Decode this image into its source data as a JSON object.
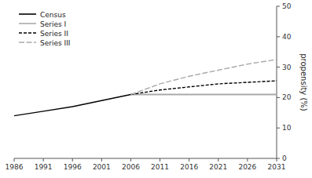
{
  "chart_data": {
    "type": "line",
    "ylabel": "propensity (%)",
    "series": [
      {
        "name": "Census",
        "color": "#000000",
        "line_style": "solid",
        "x": [
          1986,
          1991,
          1996,
          2001,
          2006
        ],
        "values": [
          14.0,
          15.5,
          17.0,
          19.0,
          21.0
        ]
      },
      {
        "name": "Series I",
        "color": "#aaaaaa",
        "line_style": "solid",
        "x": [
          2006,
          2011,
          2016,
          2021,
          2026,
          2031
        ],
        "values": [
          21.0,
          21.0,
          21.0,
          21.0,
          21.0,
          21.0
        ]
      },
      {
        "name": "Series II",
        "color": "#000000",
        "line_style": "dashed",
        "x": [
          2006,
          2011,
          2016,
          2021,
          2026,
          2031
        ],
        "values": [
          21.0,
          22.5,
          23.5,
          24.5,
          25.0,
          25.5
        ]
      },
      {
        "name": "Series III",
        "color": "#aaaaaa",
        "line_style": "longdash",
        "x": [
          2006,
          2011,
          2016,
          2021,
          2026,
          2031
        ],
        "values": [
          21.0,
          24.5,
          27.0,
          29.0,
          31.0,
          32.5
        ]
      }
    ],
    "xlim": [
      1986,
      2031
    ],
    "ylim": [
      0,
      50
    ],
    "xticks": [
      1986,
      1991,
      1996,
      2001,
      2006,
      2011,
      2016,
      2021,
      2026,
      2031
    ],
    "yticks": [
      0,
      10,
      20,
      30,
      40,
      50
    ],
    "grid": false,
    "legend": "upper left"
  }
}
